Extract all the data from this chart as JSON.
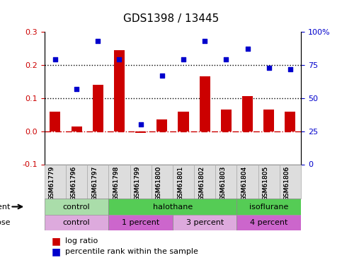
{
  "title": "GDS1398 / 13445",
  "samples": [
    "GSM61779",
    "GSM61796",
    "GSM61797",
    "GSM61798",
    "GSM61799",
    "GSM61800",
    "GSM61801",
    "GSM61802",
    "GSM61803",
    "GSM61804",
    "GSM61805",
    "GSM61806"
  ],
  "log_ratio": [
    0.06,
    0.015,
    0.14,
    0.245,
    -0.005,
    0.035,
    0.06,
    0.165,
    0.065,
    0.105,
    0.065,
    0.06
  ],
  "percentile": [
    0.79,
    0.57,
    0.93,
    0.79,
    0.3,
    0.67,
    0.79,
    0.93,
    0.79,
    0.87,
    0.73,
    0.72
  ],
  "ylim_left": [
    -0.1,
    0.3
  ],
  "ylim_right": [
    0,
    100
  ],
  "bar_color": "#cc0000",
  "scatter_color": "#0000cc",
  "dotted_line_values": [
    0.1,
    0.2
  ],
  "zero_line_color": "#cc0000",
  "agent_groups": [
    {
      "label": "control",
      "start": 0,
      "end": 3,
      "color": "#99ee99"
    },
    {
      "label": "halothane",
      "start": 3,
      "end": 9,
      "color": "#44cc44"
    },
    {
      "label": "isoflurane",
      "start": 9,
      "end": 12,
      "color": "#44cc44"
    }
  ],
  "dose_groups": [
    {
      "label": "control",
      "start": 0,
      "end": 3,
      "color": "#ddaadd"
    },
    {
      "label": "1 percent",
      "start": 3,
      "end": 6,
      "color": "#cc66cc"
    },
    {
      "label": "3 percent",
      "start": 6,
      "end": 9,
      "color": "#ddaadd"
    },
    {
      "label": "4 percent",
      "start": 9,
      "end": 12,
      "color": "#cc66cc"
    }
  ],
  "legend_items": [
    {
      "label": "log ratio",
      "color": "#cc0000"
    },
    {
      "label": "percentile rank within the sample",
      "color": "#0000cc"
    }
  ],
  "right_axis_ticks": [
    0,
    25,
    50,
    75,
    100
  ],
  "right_axis_labels": [
    "0",
    "25",
    "50",
    "75",
    "100%"
  ],
  "left_axis_ticks": [
    -0.1,
    0.0,
    0.1,
    0.2,
    0.3
  ],
  "bg_color": "#ffffff",
  "plot_bg_color": "#ffffff",
  "grid_bg_color": "#f0f0f0"
}
